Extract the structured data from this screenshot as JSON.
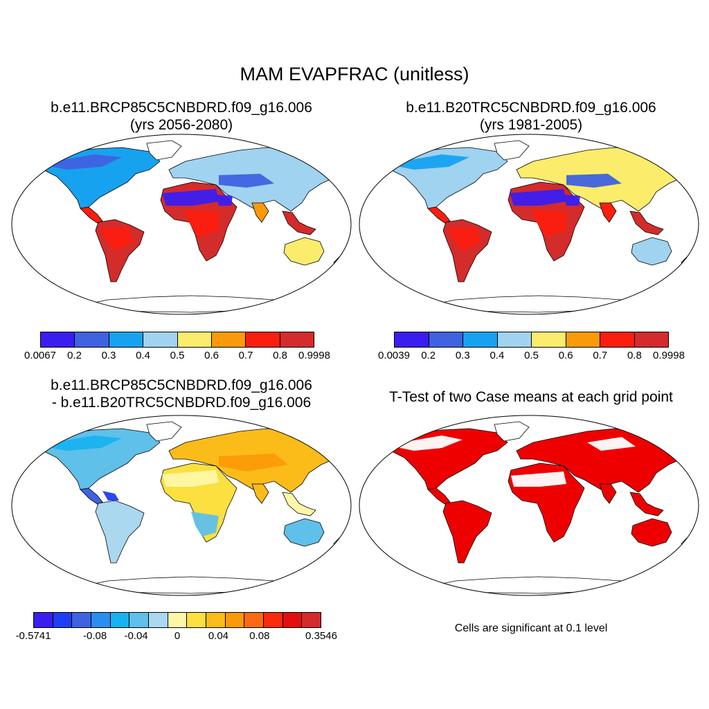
{
  "figure": {
    "title": "MAM EVAPFRAC (unitless)",
    "note": "Cells are significant at 0.1 level"
  },
  "panels": [
    {
      "title_line1": "b.e11.BRCP85C5CNBDRD.f09_g16.006",
      "title_line2": "(yrs 2056-2080)"
    },
    {
      "title_line1": "b.e11.B20TRC5CNBDRD.f09_g16.006",
      "title_line2": "(yrs 1981-2005)"
    },
    {
      "title_line1": "b.e11.BRCP85C5CNBDRD.f09_g16.006",
      "title_line2": "- b.e11.B20TRC5CNBDRD.f09_g16.006"
    },
    {
      "title_line1": "T-Test of two Case means at each grid point"
    }
  ],
  "colorbars": [
    {
      "colors": [
        "#3a1ef0",
        "#3f62e0",
        "#17a2f0",
        "#9fd3f0",
        "#fbec6c",
        "#fb9a08",
        "#fb1e0e",
        "#d42b2b"
      ],
      "labels": [
        "0.0067",
        "0.2",
        "0.3",
        "0.4",
        "0.5",
        "0.6",
        "0.7",
        "0.8",
        "0.9998"
      ]
    },
    {
      "colors": [
        "#3a1ef0",
        "#3f62e0",
        "#17a2f0",
        "#9fd3f0",
        "#fbec6c",
        "#fb9a08",
        "#fb1e0e",
        "#d42b2b"
      ],
      "labels": [
        "0.0039",
        "0.2",
        "0.3",
        "0.4",
        "0.5",
        "0.6",
        "0.7",
        "0.8",
        "0.9998"
      ]
    },
    {
      "colors": [
        "#3a1ef0",
        "#1f3ef5",
        "#3f62e0",
        "#2a8ef0",
        "#17b2f0",
        "#5fc0ea",
        "#a9d8ef",
        "#fff7a8",
        "#fbe040",
        "#fbbc1a",
        "#fb9a08",
        "#fb6a10",
        "#fb2a0e",
        "#e40e0e",
        "#d42b2b"
      ],
      "labels": [
        "-0.5741",
        "",
        "",
        "-0.08",
        "",
        "-0.04",
        "",
        "0",
        "",
        "0.04",
        "",
        "0.08",
        "",
        "",
        "0.3546"
      ]
    }
  ],
  "map_colors": {
    "land_outline": "#000000",
    "significant": "#ee0000"
  }
}
